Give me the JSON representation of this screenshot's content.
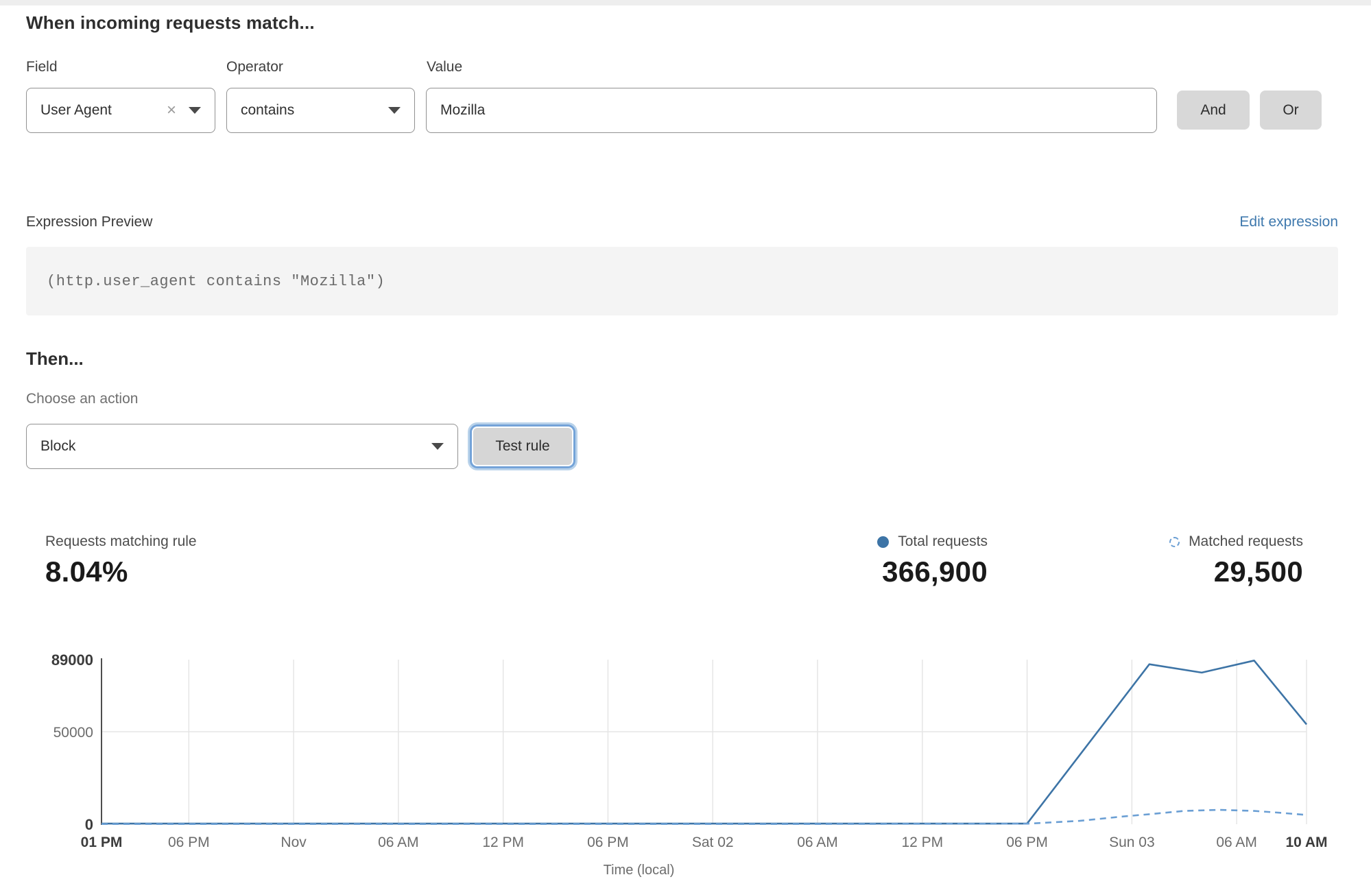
{
  "rule_builder": {
    "heading": "When incoming requests match...",
    "field": {
      "label": "Field",
      "value": "User Agent"
    },
    "operator": {
      "label": "Operator",
      "value": "contains"
    },
    "value": {
      "label": "Value",
      "value": "Mozilla"
    },
    "and_button": "And",
    "or_button": "Or"
  },
  "icons": {
    "clear": "×"
  },
  "expression": {
    "label": "Expression Preview",
    "edit_link": "Edit expression",
    "code": "(http.user_agent contains \"Mozilla\")"
  },
  "action": {
    "heading": "Then...",
    "label": "Choose an action",
    "value": "Block",
    "test_button": "Test rule"
  },
  "stats": {
    "matching": {
      "label": "Requests matching rule",
      "value": "8.04%"
    },
    "total": {
      "label": "Total requests",
      "value": "366,900"
    },
    "matched": {
      "label": "Matched requests",
      "value": "29,500"
    }
  },
  "colors": {
    "total_line": "#3d74a6",
    "matched_line": "#6b9fd4",
    "grid": "#e5e5e5",
    "axis": "#4d4d4d",
    "link": "#3e78ad"
  },
  "chart_data": {
    "type": "line",
    "title": "",
    "xlabel": "Time (local)",
    "ylabel": "",
    "ylim": [
      0,
      89000
    ],
    "x_range_hours": [
      0,
      69
    ],
    "grid": "vertical lines at each x tick, horizontal line at 50000",
    "legend_position": "top-right above chart with totals",
    "y_ticks": [
      {
        "value": 0,
        "label": "0",
        "bold": true
      },
      {
        "value": 50000,
        "label": "50000",
        "bold": false
      },
      {
        "value": 89000,
        "label": "89000",
        "bold": true
      }
    ],
    "x_ticks": [
      {
        "hour": 0,
        "label": "01 PM",
        "bold": true
      },
      {
        "hour": 5,
        "label": "06 PM",
        "bold": false
      },
      {
        "hour": 11,
        "label": "Nov",
        "bold": false
      },
      {
        "hour": 17,
        "label": "06 AM",
        "bold": false
      },
      {
        "hour": 23,
        "label": "12 PM",
        "bold": false
      },
      {
        "hour": 29,
        "label": "06 PM",
        "bold": false
      },
      {
        "hour": 35,
        "label": "Sat 02",
        "bold": false
      },
      {
        "hour": 41,
        "label": "06 AM",
        "bold": false
      },
      {
        "hour": 47,
        "label": "12 PM",
        "bold": false
      },
      {
        "hour": 53,
        "label": "06 PM",
        "bold": false
      },
      {
        "hour": 59,
        "label": "Sun 03",
        "bold": false
      },
      {
        "hour": 65,
        "label": "06 AM",
        "bold": false
      },
      {
        "hour": 69,
        "label": "10 AM",
        "bold": true
      }
    ],
    "series": [
      {
        "name": "Total requests",
        "style": "solid",
        "color": "#3d74a6",
        "points": [
          [
            0,
            350
          ],
          [
            10,
            350
          ],
          [
            20,
            350
          ],
          [
            30,
            350
          ],
          [
            40,
            350
          ],
          [
            53,
            350
          ],
          [
            60,
            86500
          ],
          [
            63,
            82000
          ],
          [
            66,
            88500
          ],
          [
            69,
            54000
          ]
        ]
      },
      {
        "name": "Matched requests",
        "style": "dashed",
        "color": "#6b9fd4",
        "points": [
          [
            0,
            120
          ],
          [
            10,
            120
          ],
          [
            20,
            120
          ],
          [
            30,
            120
          ],
          [
            40,
            120
          ],
          [
            53,
            300
          ],
          [
            56,
            1800
          ],
          [
            58.5,
            4200
          ],
          [
            60,
            5400
          ],
          [
            62,
            7200
          ],
          [
            64,
            7800
          ],
          [
            66,
            7200
          ],
          [
            67.5,
            6200
          ],
          [
            69,
            5000
          ]
        ]
      }
    ]
  }
}
